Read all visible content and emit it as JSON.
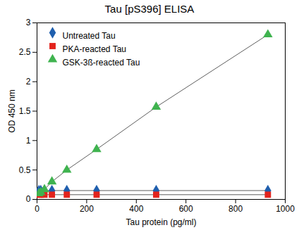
{
  "chart_data": {
    "type": "line",
    "title": "Tau [pS396] ELISA",
    "x_label": "Tau protein (pg/ml)",
    "y_label": "OD 450 nm",
    "x": [
      7.5,
      15,
      30,
      60,
      120,
      240,
      480,
      930
    ],
    "series": [
      {
        "name": "Untreated Tau",
        "color": "#1f5fae",
        "marker": "diamond",
        "values": [
          0.15,
          0.15,
          0.15,
          0.15,
          0.15,
          0.15,
          0.15,
          0.15
        ]
      },
      {
        "name": "PKA-reacted Tau",
        "color": "#e3231c",
        "marker": "square",
        "values": [
          0.08,
          0.08,
          0.08,
          0.08,
          0.08,
          0.08,
          0.08,
          0.08
        ]
      },
      {
        "name": "GSK-3ß-reacted Tau",
        "color": "#3fb34f",
        "marker": "triangle",
        "values": [
          0.1,
          0.12,
          0.17,
          0.3,
          0.5,
          0.85,
          1.57,
          2.8
        ]
      }
    ],
    "xlim": [
      0,
      1000
    ],
    "xticks": [
      0,
      200,
      400,
      600,
      800,
      1000
    ],
    "ylim": [
      0,
      3
    ],
    "yticks": [
      0,
      0.5,
      1,
      1.5,
      2,
      2.5,
      3
    ],
    "grid": false,
    "legend": "top-left"
  }
}
